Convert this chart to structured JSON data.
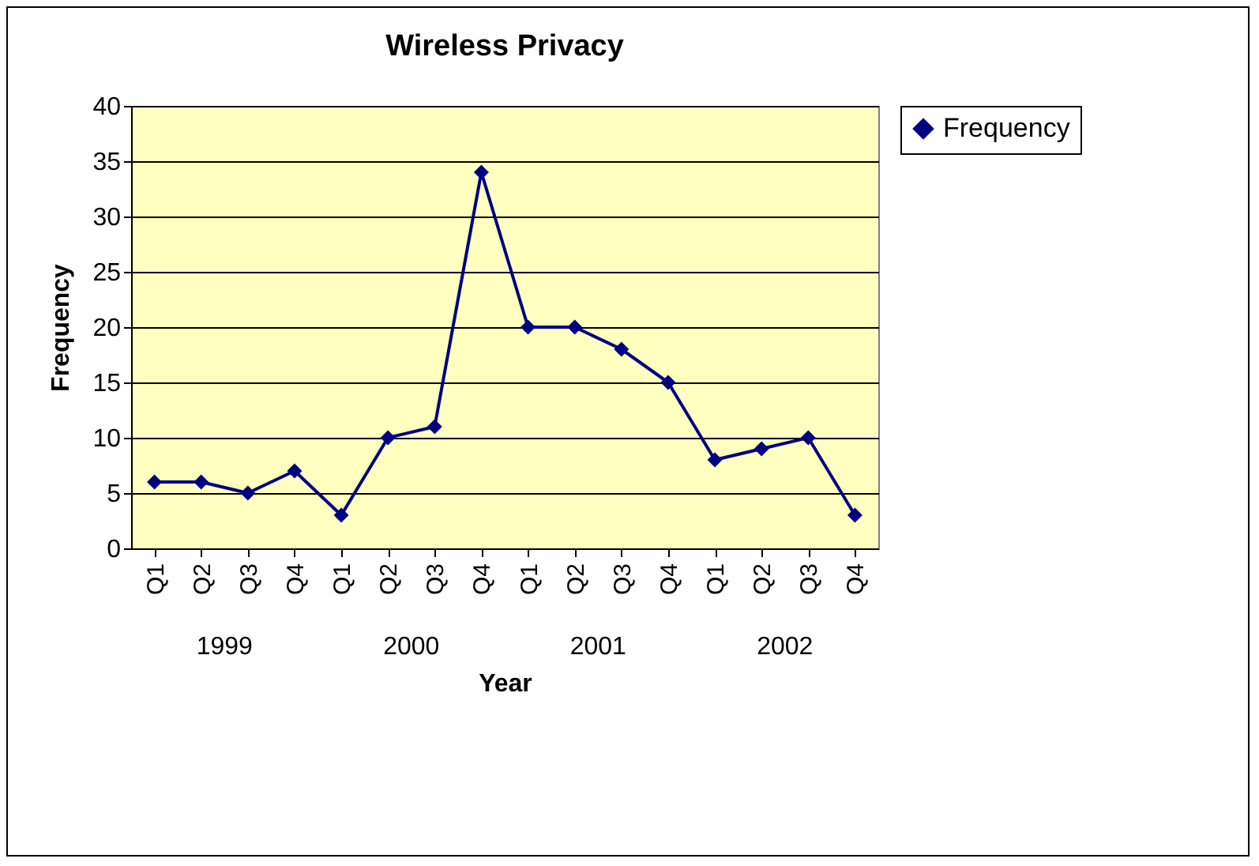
{
  "chart_data": {
    "type": "line",
    "title": "Wireless Privacy",
    "xlabel": "Year",
    "ylabel": "Frequency",
    "categories": [
      "Q1",
      "Q2",
      "Q3",
      "Q4",
      "Q1",
      "Q2",
      "Q3",
      "Q4",
      "Q1",
      "Q2",
      "Q3",
      "Q4",
      "Q1",
      "Q2",
      "Q3",
      "Q4"
    ],
    "annotations": [
      "1999",
      "2000",
      "2001",
      "2002"
    ],
    "series": [
      {
        "name": "Frequency",
        "color": "#000080",
        "values": [
          6,
          6,
          5,
          7,
          3,
          10,
          11,
          34,
          20,
          20,
          18,
          15,
          8,
          9,
          10,
          3
        ]
      }
    ],
    "ylim": [
      0,
      40
    ],
    "yticks": [
      0,
      5,
      10,
      15,
      20,
      25,
      30,
      35,
      40
    ],
    "grid": "y",
    "legend": "right",
    "marker": "diamond",
    "line_style": "solid"
  }
}
